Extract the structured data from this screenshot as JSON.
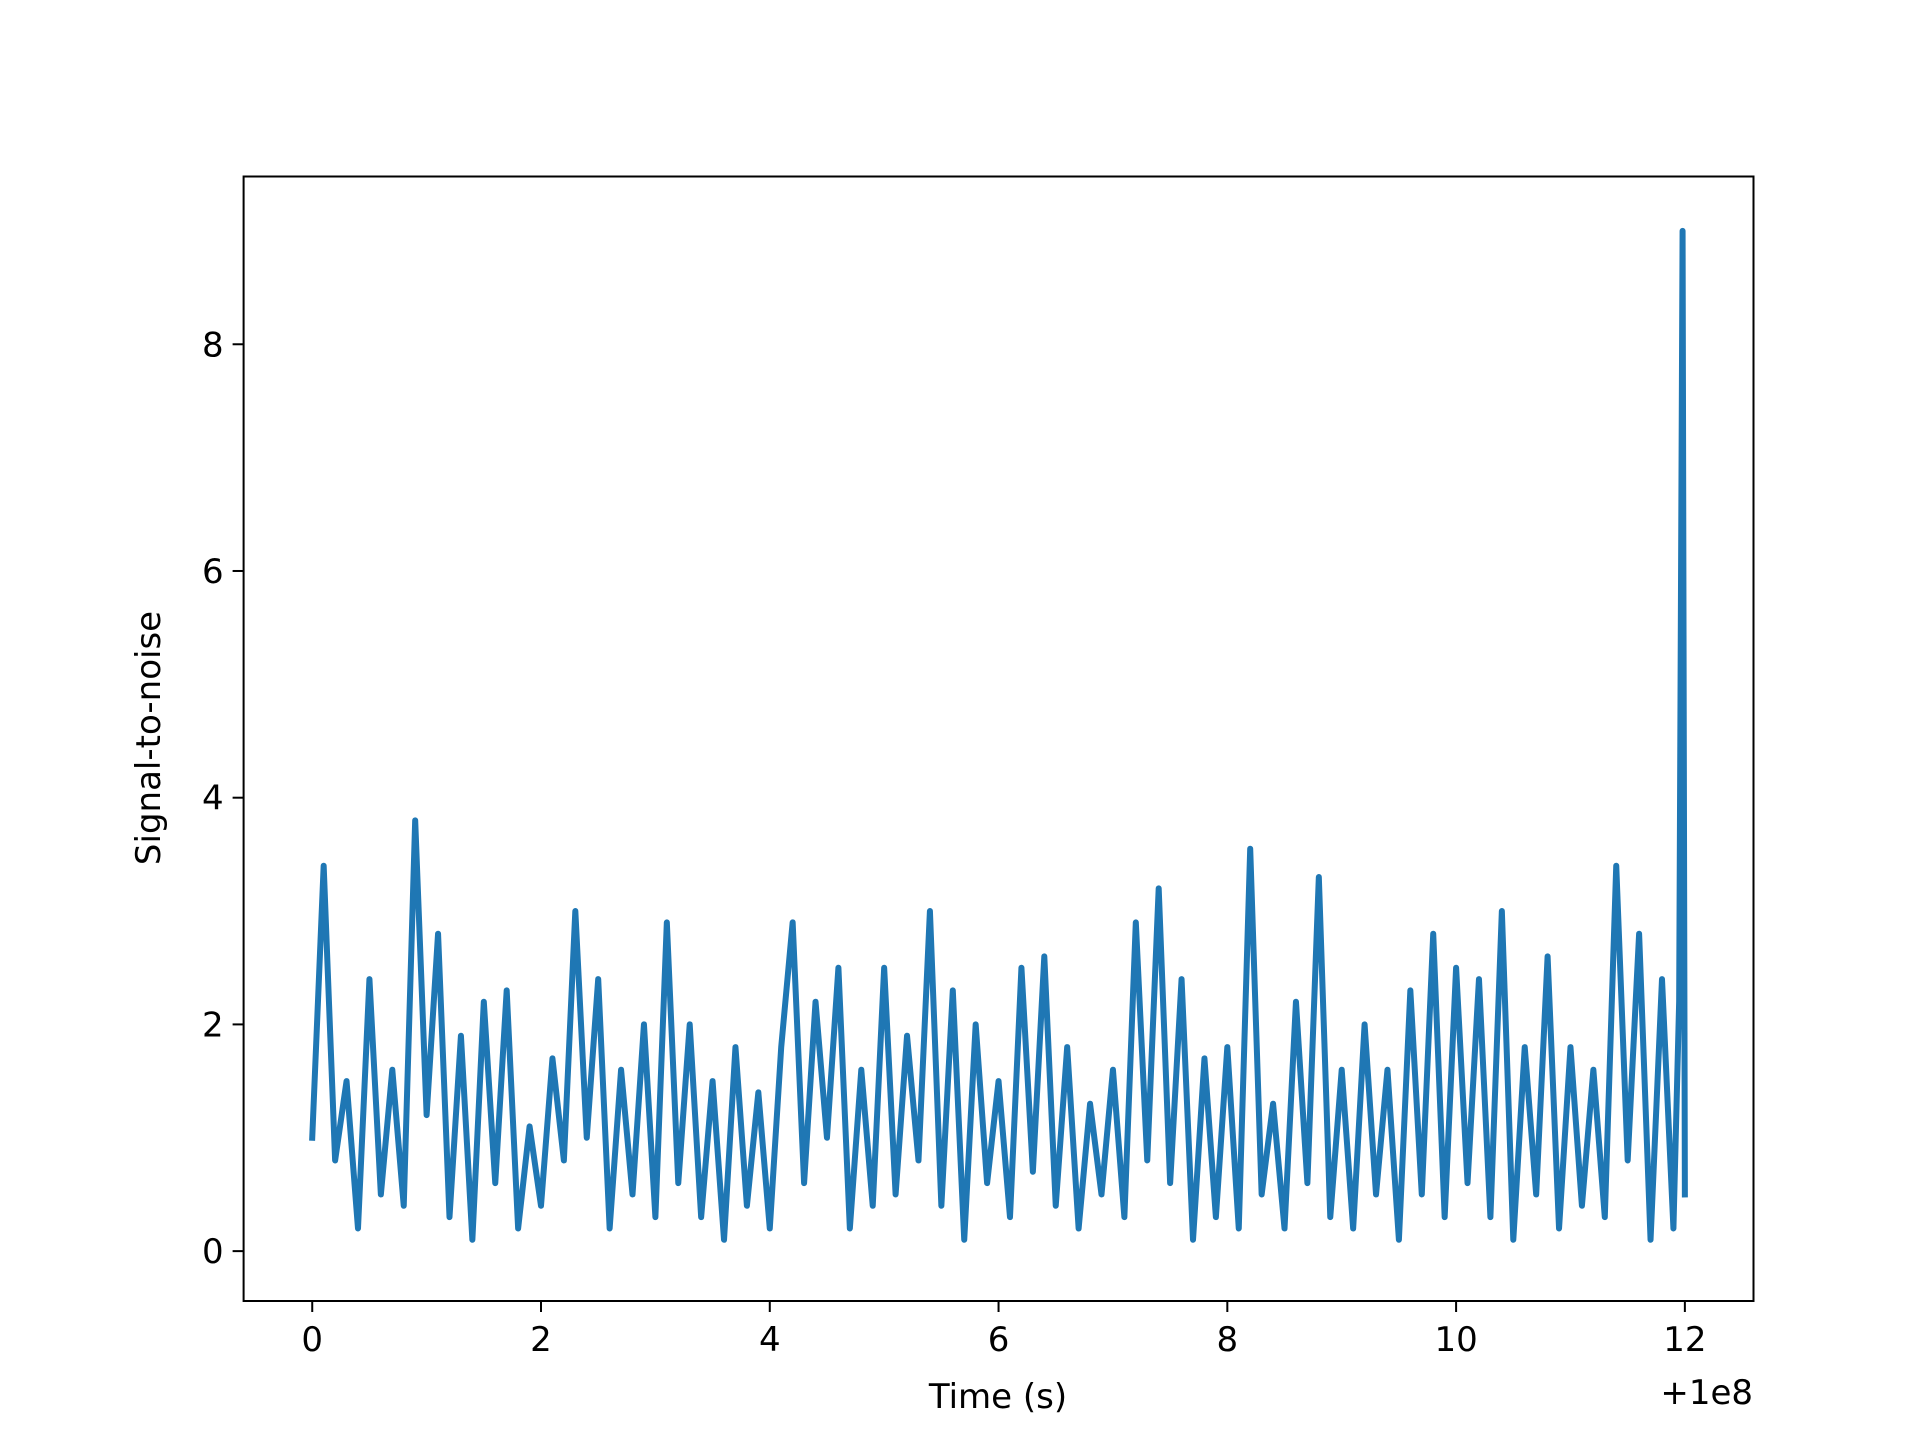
{
  "chart_data": {
    "type": "line",
    "xlabel": "Time (s)",
    "ylabel": "Signal-to-noise",
    "x_offset_label": "+1e8",
    "xlim": [
      -0.6,
      12.6
    ],
    "ylim": [
      -0.44,
      9.48
    ],
    "xticks": [
      0,
      2,
      4,
      6,
      8,
      10,
      12
    ],
    "yticks": [
      0,
      2,
      4,
      6,
      8
    ],
    "grid": false,
    "series": [
      {
        "color": "#1f77b4",
        "x": [
          0.0,
          0.1,
          0.2,
          0.3,
          0.4,
          0.5,
          0.6,
          0.7,
          0.8,
          0.9,
          1.0,
          1.1,
          1.2,
          1.3,
          1.4,
          1.5,
          1.6,
          1.7,
          1.8,
          1.9,
          2.0,
          2.1,
          2.2,
          2.3,
          2.4,
          2.5,
          2.6,
          2.7,
          2.8,
          2.9,
          3.0,
          3.1,
          3.2,
          3.3,
          3.4,
          3.5,
          3.6,
          3.7,
          3.8,
          3.9,
          4.0,
          4.1,
          4.2,
          4.3,
          4.4,
          4.5,
          4.6,
          4.7,
          4.8,
          4.9,
          5.0,
          5.1,
          5.2,
          5.3,
          5.4,
          5.5,
          5.6,
          5.7,
          5.8,
          5.9,
          6.0,
          6.1,
          6.2,
          6.3,
          6.4,
          6.5,
          6.6,
          6.7,
          6.8,
          6.9,
          7.0,
          7.1,
          7.2,
          7.3,
          7.4,
          7.5,
          7.6,
          7.7,
          7.8,
          7.9,
          8.0,
          8.1,
          8.2,
          8.3,
          8.4,
          8.5,
          8.6,
          8.7,
          8.8,
          8.9,
          9.0,
          9.1,
          9.2,
          9.3,
          9.4,
          9.5,
          9.6,
          9.7,
          9.8,
          9.9,
          10.0,
          10.1,
          10.2,
          10.3,
          10.4,
          10.5,
          10.6,
          10.7,
          10.8,
          10.9,
          11.0,
          11.1,
          11.2,
          11.3,
          11.4,
          11.5,
          11.6,
          11.7,
          11.8,
          11.9,
          11.95,
          11.98,
          12.0
        ],
        "values": [
          1.0,
          3.4,
          0.8,
          1.5,
          0.2,
          2.4,
          0.5,
          1.6,
          0.4,
          3.8,
          1.2,
          2.8,
          0.3,
          1.9,
          0.1,
          2.2,
          0.6,
          2.3,
          0.2,
          1.1,
          0.4,
          1.7,
          0.8,
          3.0,
          1.0,
          2.4,
          0.2,
          1.6,
          0.5,
          2.0,
          0.3,
          2.9,
          0.6,
          2.0,
          0.3,
          1.5,
          0.1,
          1.8,
          0.4,
          1.4,
          0.2,
          1.8,
          2.9,
          0.6,
          2.2,
          1.0,
          2.5,
          0.2,
          1.6,
          0.4,
          2.5,
          0.5,
          1.9,
          0.8,
          3.0,
          0.4,
          2.3,
          0.1,
          2.0,
          0.6,
          1.5,
          0.3,
          2.5,
          0.7,
          2.6,
          0.4,
          1.8,
          0.2,
          1.3,
          0.5,
          1.6,
          0.3,
          2.9,
          0.8,
          3.2,
          0.6,
          2.4,
          0.1,
          1.7,
          0.3,
          1.8,
          0.2,
          3.55,
          0.5,
          1.3,
          0.2,
          2.2,
          0.6,
          3.3,
          0.3,
          1.6,
          0.2,
          2.0,
          0.5,
          1.6,
          0.1,
          2.3,
          0.5,
          2.8,
          0.3,
          2.5,
          0.6,
          2.4,
          0.3,
          3.0,
          0.1,
          1.8,
          0.5,
          2.6,
          0.2,
          1.8,
          0.4,
          1.6,
          0.3,
          3.4,
          0.8,
          2.8,
          0.1,
          2.4,
          0.2,
          2.2,
          9.0,
          0.5
        ]
      }
    ]
  }
}
